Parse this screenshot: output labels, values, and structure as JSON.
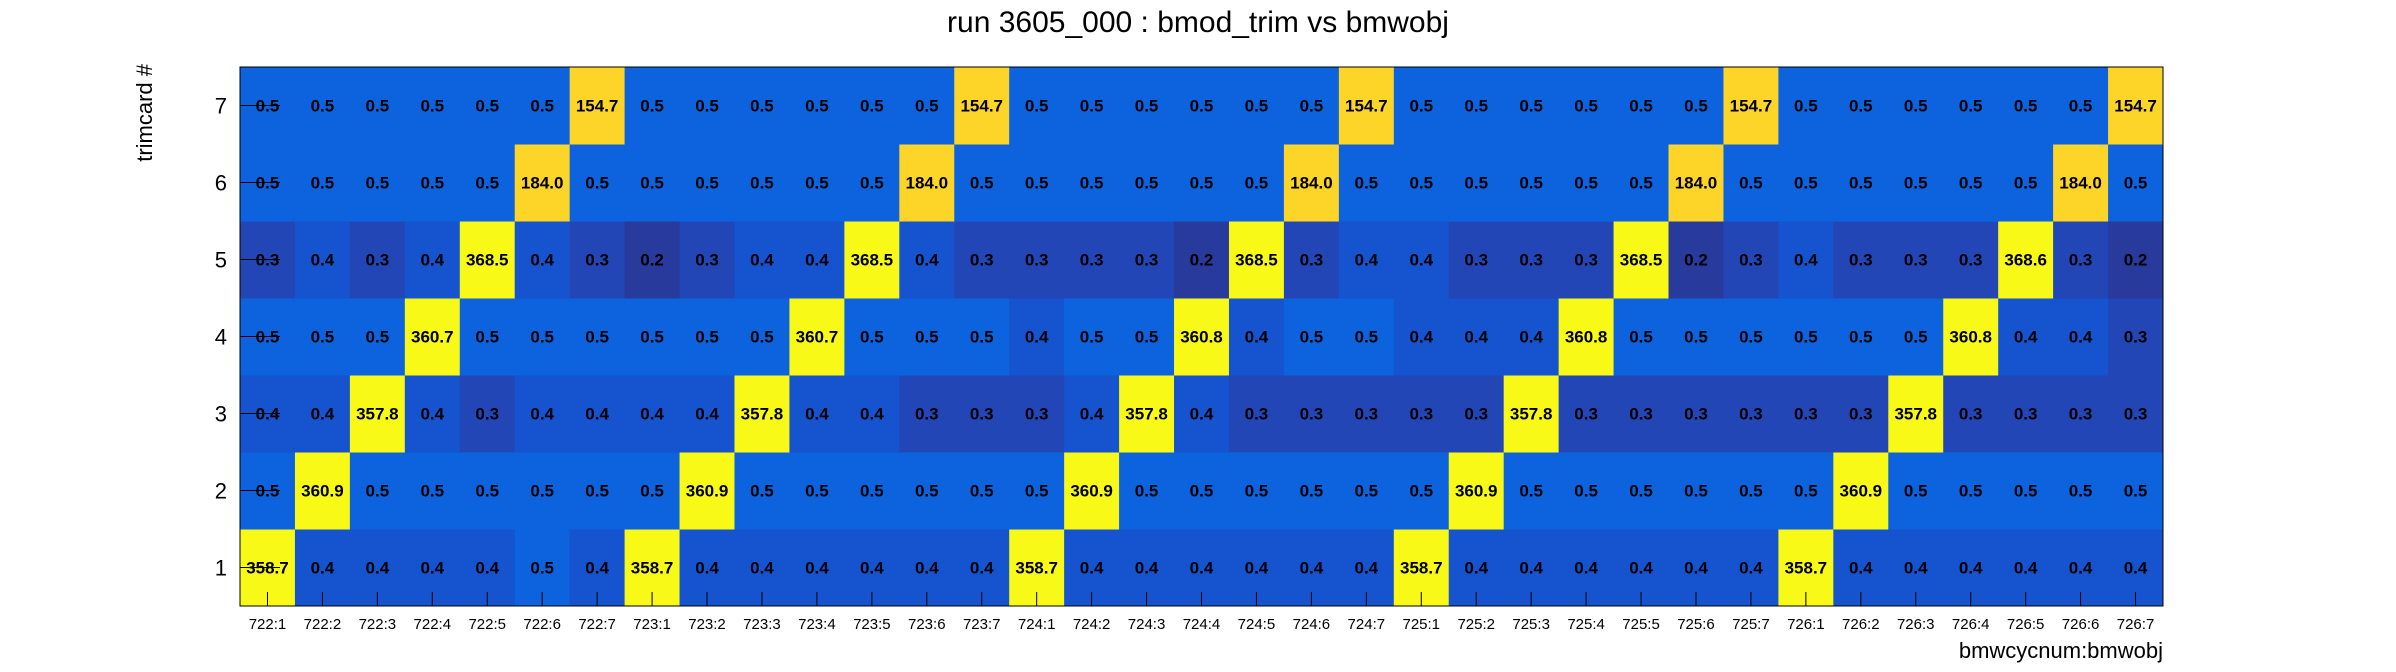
{
  "chart_data": {
    "type": "heatmap",
    "title": "run 3605_000 : bmod_trim vs bmwobj",
    "xlabel": "bmwcycnum:bmwobj",
    "ylabel": "trimcard #",
    "x_categories": [
      "722:1",
      "722:2",
      "722:3",
      "722:4",
      "722:5",
      "722:6",
      "722:7",
      "723:1",
      "723:2",
      "723:3",
      "723:4",
      "723:5",
      "723:6",
      "723:7",
      "724:1",
      "724:2",
      "724:3",
      "724:4",
      "724:5",
      "724:6",
      "724:7",
      "725:1",
      "725:2",
      "725:3",
      "725:4",
      "725:5",
      "725:6",
      "725:7",
      "726:1",
      "726:2",
      "726:3",
      "726:4",
      "726:5",
      "726:6",
      "726:7"
    ],
    "y_categories": [
      "1",
      "2",
      "3",
      "4",
      "5",
      "6",
      "7"
    ],
    "values": [
      [
        "358.7",
        "0.4",
        "0.4",
        "0.4",
        "0.4",
        "0.5",
        "0.4",
        "358.7",
        "0.4",
        "0.4",
        "0.4",
        "0.4",
        "0.4",
        "0.4",
        "358.7",
        "0.4",
        "0.4",
        "0.4",
        "0.4",
        "0.4",
        "0.4",
        "358.7",
        "0.4",
        "0.4",
        "0.4",
        "0.4",
        "0.4",
        "0.4",
        "358.7",
        "0.4",
        "0.4",
        "0.4",
        "0.4",
        "0.4",
        "0.4"
      ],
      [
        "0.5",
        "360.9",
        "0.5",
        "0.5",
        "0.5",
        "0.5",
        "0.5",
        "0.5",
        "360.9",
        "0.5",
        "0.5",
        "0.5",
        "0.5",
        "0.5",
        "0.5",
        "360.9",
        "0.5",
        "0.5",
        "0.5",
        "0.5",
        "0.5",
        "0.5",
        "360.9",
        "0.5",
        "0.5",
        "0.5",
        "0.5",
        "0.5",
        "0.5",
        "360.9",
        "0.5",
        "0.5",
        "0.5",
        "0.5",
        "0.5"
      ],
      [
        "0.4",
        "0.4",
        "357.8",
        "0.4",
        "0.3",
        "0.4",
        "0.4",
        "0.4",
        "0.4",
        "357.8",
        "0.4",
        "0.4",
        "0.3",
        "0.3",
        "0.3",
        "0.4",
        "357.8",
        "0.4",
        "0.3",
        "0.3",
        "0.3",
        "0.3",
        "0.3",
        "357.8",
        "0.3",
        "0.3",
        "0.3",
        "0.3",
        "0.3",
        "0.3",
        "357.8",
        "0.3",
        "0.3",
        "0.3",
        "0.3"
      ],
      [
        "0.5",
        "0.5",
        "0.5",
        "360.7",
        "0.5",
        "0.5",
        "0.5",
        "0.5",
        "0.5",
        "0.5",
        "360.7",
        "0.5",
        "0.5",
        "0.5",
        "0.4",
        "0.5",
        "0.5",
        "360.8",
        "0.4",
        "0.5",
        "0.5",
        "0.4",
        "0.4",
        "0.4",
        "360.8",
        "0.5",
        "0.5",
        "0.5",
        "0.5",
        "0.5",
        "0.5",
        "360.8",
        "0.4",
        "0.4",
        "0.3"
      ],
      [
        "0.3",
        "0.4",
        "0.3",
        "0.4",
        "368.5",
        "0.4",
        "0.3",
        "0.2",
        "0.3",
        "0.4",
        "0.4",
        "368.5",
        "0.4",
        "0.3",
        "0.3",
        "0.3",
        "0.3",
        "0.2",
        "368.5",
        "0.3",
        "0.4",
        "0.4",
        "0.3",
        "0.3",
        "0.3",
        "368.5",
        "0.2",
        "0.3",
        "0.4",
        "0.3",
        "0.3",
        "0.3",
        "368.6",
        "0.3",
        "0.2"
      ],
      [
        "0.5",
        "0.5",
        "0.5",
        "0.5",
        "0.5",
        "184.0",
        "0.5",
        "0.5",
        "0.5",
        "0.5",
        "0.5",
        "0.5",
        "184.0",
        "0.5",
        "0.5",
        "0.5",
        "0.5",
        "0.5",
        "0.5",
        "184.0",
        "0.5",
        "0.5",
        "0.5",
        "0.5",
        "0.5",
        "0.5",
        "184.0",
        "0.5",
        "0.5",
        "0.5",
        "0.5",
        "0.5",
        "0.5",
        "184.0",
        "0.5"
      ],
      [
        "0.5",
        "0.5",
        "0.5",
        "0.5",
        "0.5",
        "0.5",
        "154.7",
        "0.5",
        "0.5",
        "0.5",
        "0.5",
        "0.5",
        "0.5",
        "154.7",
        "0.5",
        "0.5",
        "0.5",
        "0.5",
        "0.5",
        "0.5",
        "154.7",
        "0.5",
        "0.5",
        "0.5",
        "0.5",
        "0.5",
        "0.5",
        "154.7",
        "0.5",
        "0.5",
        "0.5",
        "0.5",
        "0.5",
        "0.5",
        "154.7"
      ]
    ],
    "low_cell_colors": {
      "0.2": "#283a9c",
      "0.3": "#2346b6",
      "0.4": "#1553cf",
      "0.5": "#0d62dd"
    },
    "mid_cell_color": "#fdd529",
    "high_cell_color": "#f8f916",
    "color_threshold": 300
  }
}
